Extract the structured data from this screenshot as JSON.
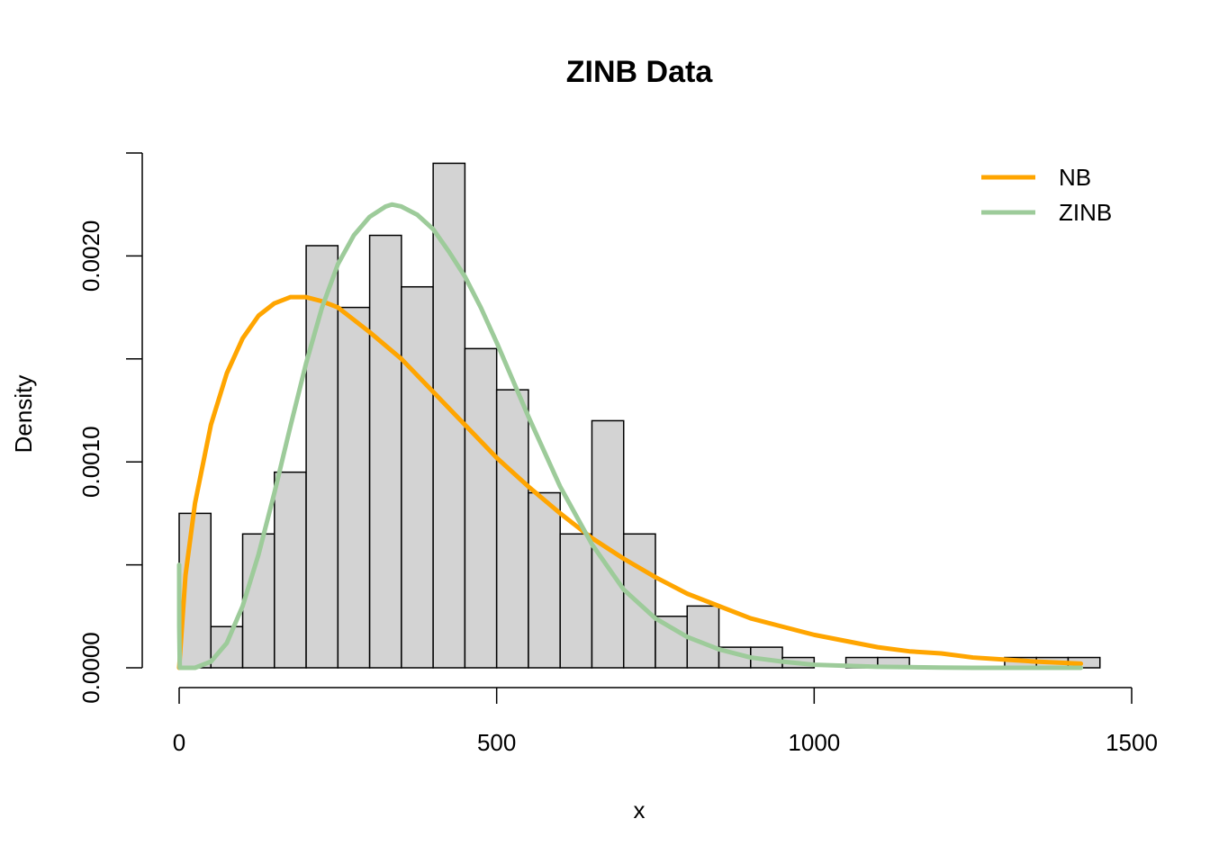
{
  "chart_data": {
    "type": "bar",
    "title": "ZINB Data",
    "xlabel": "x",
    "ylabel": "Density",
    "xlim": [
      0,
      1500
    ],
    "ylim": [
      0,
      0.0025
    ],
    "x_ticks": [
      0,
      500,
      1000,
      1500
    ],
    "x_tick_labels": [
      "0",
      "500",
      "1000",
      "1500"
    ],
    "y_ticks": [
      0,
      0.0005,
      0.001,
      0.0015,
      0.002,
      0.0025
    ],
    "y_tick_labels": [
      "0.0000",
      "",
      "0.0010",
      "",
      "0.0020",
      ""
    ],
    "grid": false,
    "legend": {
      "position": "top-right",
      "entries": [
        {
          "label": "NB",
          "color": "#FFA500"
        },
        {
          "label": "ZINB",
          "color": "#9DCB9A"
        }
      ]
    },
    "histogram": {
      "bin_width": 50,
      "bin_starts": [
        0,
        50,
        100,
        150,
        200,
        250,
        300,
        350,
        400,
        450,
        500,
        550,
        600,
        650,
        700,
        750,
        800,
        850,
        900,
        950,
        1000,
        1050,
        1100,
        1150,
        1200,
        1250,
        1300,
        1350,
        1400
      ],
      "densities": [
        0.00075,
        0.0002,
        0.00065,
        0.00095,
        0.00205,
        0.00175,
        0.0021,
        0.00185,
        0.00245,
        0.00155,
        0.00135,
        0.00085,
        0.00065,
        0.0012,
        0.00065,
        0.00025,
        0.0003,
        0.0001,
        0.0001,
        5e-05,
        0.0,
        5e-05,
        5e-05,
        0.0,
        0.0,
        0.0,
        5e-05,
        5e-05,
        5e-05
      ],
      "fill": "#D3D3D3",
      "stroke": "#000000"
    },
    "series": [
      {
        "name": "NB",
        "color": "#FFA500",
        "x": [
          0,
          10,
          25,
          50,
          75,
          100,
          125,
          150,
          175,
          200,
          225,
          250,
          300,
          350,
          400,
          450,
          500,
          550,
          600,
          650,
          700,
          750,
          800,
          850,
          900,
          950,
          1000,
          1050,
          1100,
          1150,
          1200,
          1250,
          1300,
          1350,
          1420
        ],
        "y": [
          0.0,
          0.00045,
          0.0008,
          0.00118,
          0.00143,
          0.0016,
          0.00171,
          0.00177,
          0.0018,
          0.0018,
          0.00178,
          0.00175,
          0.00163,
          0.0015,
          0.00134,
          0.00118,
          0.00102,
          0.00088,
          0.00075,
          0.00063,
          0.00053,
          0.00044,
          0.00036,
          0.0003,
          0.00024,
          0.0002,
          0.00016,
          0.00013,
          0.0001,
          8e-05,
          7e-05,
          5e-05,
          4e-05,
          3e-05,
          2e-05
        ]
      },
      {
        "name": "ZINB",
        "color": "#9DCB9A",
        "x": [
          0,
          0.1,
          1,
          25,
          50,
          75,
          100,
          125,
          150,
          175,
          200,
          225,
          250,
          275,
          300,
          325,
          335,
          350,
          375,
          400,
          425,
          450,
          475,
          500,
          550,
          600,
          650,
          700,
          750,
          800,
          850,
          900,
          950,
          1000,
          1050,
          1100,
          1150,
          1200,
          1250,
          1300,
          1350,
          1420
        ],
        "y": [
          0.0005,
          0.0002,
          0.0,
          0.0,
          3e-05,
          0.00012,
          0.0003,
          0.00055,
          0.00085,
          0.00117,
          0.00148,
          0.00175,
          0.00196,
          0.0021,
          0.00219,
          0.00224,
          0.00225,
          0.00224,
          0.0022,
          0.00213,
          0.00202,
          0.0019,
          0.00175,
          0.00158,
          0.00122,
          0.00088,
          0.0006,
          0.00038,
          0.00024,
          0.00015,
          9e-05,
          5e-05,
          3e-05,
          1.5e-05,
          1e-05,
          5e-06,
          3e-06,
          1e-06,
          0.0,
          0.0,
          0.0,
          0.0
        ]
      }
    ]
  }
}
